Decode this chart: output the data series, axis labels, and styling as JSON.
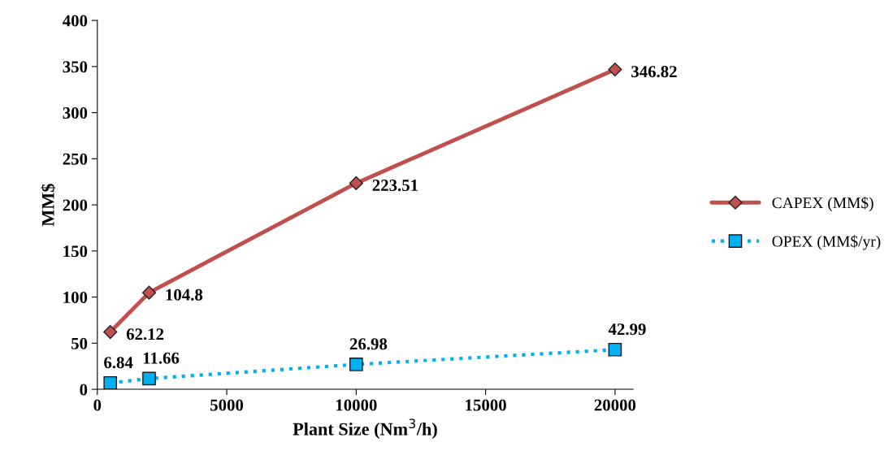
{
  "chart_data": {
    "type": "line",
    "xlabel": "Plant Size (Nm$^{3}$/h)",
    "ylabel": "MM$",
    "x": [
      500,
      2000,
      10000,
      20000
    ],
    "series": [
      {
        "name": "CAPEX (MM$)",
        "color": "#c0504d",
        "values": [
          62.12,
          104.8,
          223.51,
          346.82
        ],
        "marker": "diamond",
        "line_style": "solid"
      },
      {
        "name": "OPEX (MM$/yr)",
        "color": "#00b0f0",
        "values": [
          6.84,
          11.66,
          26.98,
          42.99
        ],
        "marker": "square",
        "line_style": "dotted"
      }
    ],
    "xlim": [
      0,
      20700
    ],
    "xticks": [
      0,
      5000,
      10000,
      15000,
      20000
    ],
    "ylim": [
      0,
      400
    ],
    "yticks": [
      0,
      50,
      100,
      150,
      200,
      250,
      300,
      350,
      400
    ],
    "data_labels": true,
    "grid": false,
    "legend": "right"
  }
}
